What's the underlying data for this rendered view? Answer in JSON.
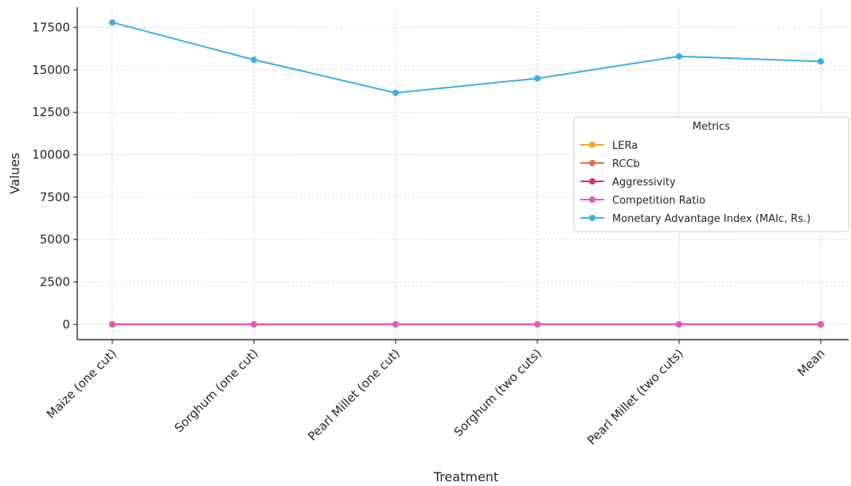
{
  "chart_data": {
    "type": "line",
    "title": "",
    "xlabel": "Treatment",
    "ylabel": "Values",
    "categories": [
      "Maize (one cut)",
      "Sorghum (one cut)",
      "Pearl Millet (one cut)",
      "Sorghum (two cuts)",
      "Pearl Millet (two cuts)",
      "Mean"
    ],
    "ylim": [
      -900,
      18700
    ],
    "yticks": [
      0,
      2500,
      5000,
      7500,
      10000,
      12500,
      15000,
      17500
    ],
    "grid": true,
    "legend": {
      "title": "Metrics",
      "placement": "center-right"
    },
    "series": [
      {
        "name": "LERa",
        "color": "#f5a623",
        "values": [
          1.02,
          0.98,
          0.95,
          1.0,
          1.03,
          1.0
        ]
      },
      {
        "name": "RCCb",
        "color": "#f26b38",
        "values": [
          1.1,
          1.05,
          0.98,
          1.02,
          1.08,
          1.05
        ]
      },
      {
        "name": "Aggressivity",
        "color": "#e0335e",
        "values": [
          0.2,
          0.15,
          0.1,
          0.12,
          0.18,
          0.15
        ]
      },
      {
        "name": "Competition Ratio",
        "color": "#e05cb5",
        "values": [
          1.3,
          1.2,
          1.1,
          1.15,
          1.25,
          1.2
        ]
      },
      {
        "name": "Monetary Advantage Index (MAIc, Rs.)",
        "color": "#3aaee8",
        "values": [
          17800,
          15600,
          13650,
          14500,
          15800,
          15500
        ]
      }
    ]
  }
}
